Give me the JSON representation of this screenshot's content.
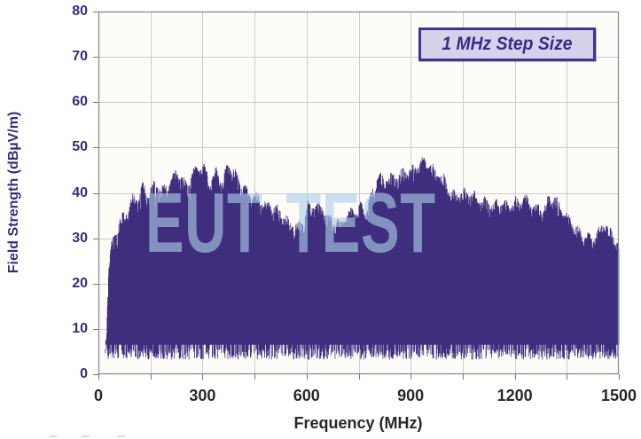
{
  "chart_data": {
    "type": "area",
    "subtype": "emission-spectrum",
    "legend_label": "1 MHz Step Size",
    "xlabel": "Frequency (MHz)",
    "ylabel": "Field Strength (dBµV/m)",
    "watermark": "EUT TEST",
    "xlim": [
      0,
      1500
    ],
    "ylim": [
      0,
      80
    ],
    "x_ticks": [
      0,
      300,
      600,
      900,
      1200,
      1500
    ],
    "y_ticks": [
      0,
      10,
      20,
      30,
      40,
      50,
      60,
      70,
      80
    ],
    "x_minor_grid_step_mhz": 150,
    "y_grid_step_db": 10,
    "step_size_mhz": 1,
    "grid": "on",
    "legend_position": "top-right",
    "data_start_mhz": 20,
    "data_end_mhz": 1500,
    "noise_floor_db": {
      "solid_top": 6.5,
      "spike_min": 3.2
    },
    "envelope_points": [
      [
        20,
        5
      ],
      [
        25,
        14
      ],
      [
        30,
        24
      ],
      [
        38,
        29
      ],
      [
        45,
        31
      ],
      [
        55,
        33.5
      ],
      [
        70,
        35.5
      ],
      [
        90,
        37
      ],
      [
        100,
        39
      ],
      [
        115,
        38.5
      ],
      [
        128,
        41
      ],
      [
        145,
        40
      ],
      [
        166,
        43
      ],
      [
        180,
        41.5
      ],
      [
        200,
        42.5
      ],
      [
        225,
        45
      ],
      [
        243,
        42.5
      ],
      [
        256,
        41.5
      ],
      [
        270,
        44
      ],
      [
        284,
        45.5
      ],
      [
        305,
        46
      ],
      [
        325,
        43.5
      ],
      [
        340,
        45.5
      ],
      [
        356,
        42.5
      ],
      [
        374,
        46
      ],
      [
        386,
        45
      ],
      [
        407,
        42.5
      ],
      [
        428,
        40.5
      ],
      [
        458,
        39.8
      ],
      [
        484,
        38
      ],
      [
        509,
        36.5
      ],
      [
        543,
        34
      ],
      [
        568,
        33.2
      ],
      [
        590,
        34.5
      ],
      [
        604,
        38
      ],
      [
        625,
        37.5
      ],
      [
        645,
        36.5
      ],
      [
        662,
        34
      ],
      [
        676,
        33.5
      ],
      [
        701,
        34
      ],
      [
        727,
        37
      ],
      [
        745,
        36.5
      ],
      [
        757,
        37.5
      ],
      [
        770,
        35.5
      ],
      [
        785,
        38.5
      ],
      [
        803,
        43
      ],
      [
        841,
        44
      ],
      [
        880,
        45.3
      ],
      [
        906,
        45
      ],
      [
        937,
        46.8
      ],
      [
        970,
        45.5
      ],
      [
        996,
        44
      ],
      [
        1014,
        41
      ],
      [
        1029,
        40
      ],
      [
        1073,
        39.5
      ],
      [
        1124,
        38.8
      ],
      [
        1162,
        38
      ],
      [
        1183,
        36.8
      ],
      [
        1226,
        39.3
      ],
      [
        1252,
        38
      ],
      [
        1282,
        37
      ],
      [
        1308,
        39.8
      ],
      [
        1334,
        36
      ],
      [
        1367,
        33.5
      ],
      [
        1400,
        31.5
      ],
      [
        1426,
        30
      ],
      [
        1459,
        33
      ],
      [
        1482,
        31
      ],
      [
        1500,
        28.5
      ]
    ],
    "colors": {
      "series": "#3f2e7e",
      "grid": "#cccccc",
      "plot_border": "#8c8c8c",
      "plot_background": "#fdfcf9",
      "tick_mark": "#777777",
      "y_axis_text": "#3a2a7e",
      "x_axis_text": "#2b2628",
      "legend_background": "#d7d2ea",
      "legend_border": "#43338c",
      "legend_text": "#3a2a85",
      "watermark_text": "#adceea"
    }
  }
}
